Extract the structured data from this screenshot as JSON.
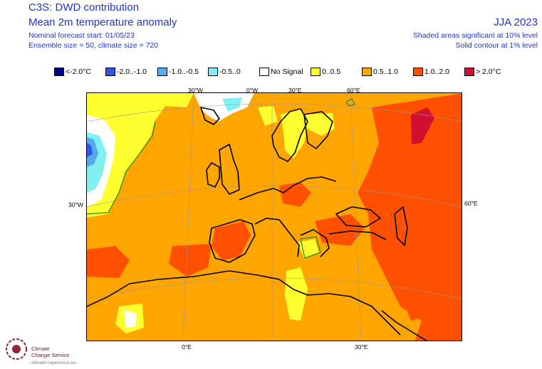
{
  "header": {
    "title": "C3S: DWD contribution",
    "subtitle": "Mean 2m temperature anomaly",
    "forecast_start": "Nominal forecast start: 01/05/23",
    "ensemble": "Ensemble size = 50, climate size = 720",
    "season": "JJA 2023",
    "shading_note": "Shaded areas significant at 10% level",
    "contour_note": "Solid contour at 1% level"
  },
  "legend": [
    {
      "label": "<-2.0°C",
      "color": "#00008b"
    },
    {
      "label": "-2.0..-1.0",
      "color": "#3355e8"
    },
    {
      "label": "-1.0..-0.5",
      "color": "#55aaee"
    },
    {
      "label": "-0.5..0",
      "color": "#80f0f0"
    },
    {
      "label": "No Signal",
      "color": "#ffffff"
    },
    {
      "label": "0..0.5",
      "color": "#ffff30"
    },
    {
      "label": "0.5..1.0",
      "color": "#ffa500"
    },
    {
      "label": "1.0..2.0",
      "color": "#ff5000"
    },
    {
      "label": "> 2.0°C",
      "color": "#d01030"
    }
  ],
  "map": {
    "labels_top": [
      "30°W",
      "0°W",
      "30°E",
      "60°E"
    ],
    "labels_left": [
      "30°W"
    ],
    "labels_right": [
      "60°E"
    ],
    "labels_bottom": [
      "0°E",
      "30°E"
    ]
  },
  "logo": {
    "name_line1": "Climate",
    "name_line2": "Change Service",
    "url": "climate.copernicus.eu"
  }
}
